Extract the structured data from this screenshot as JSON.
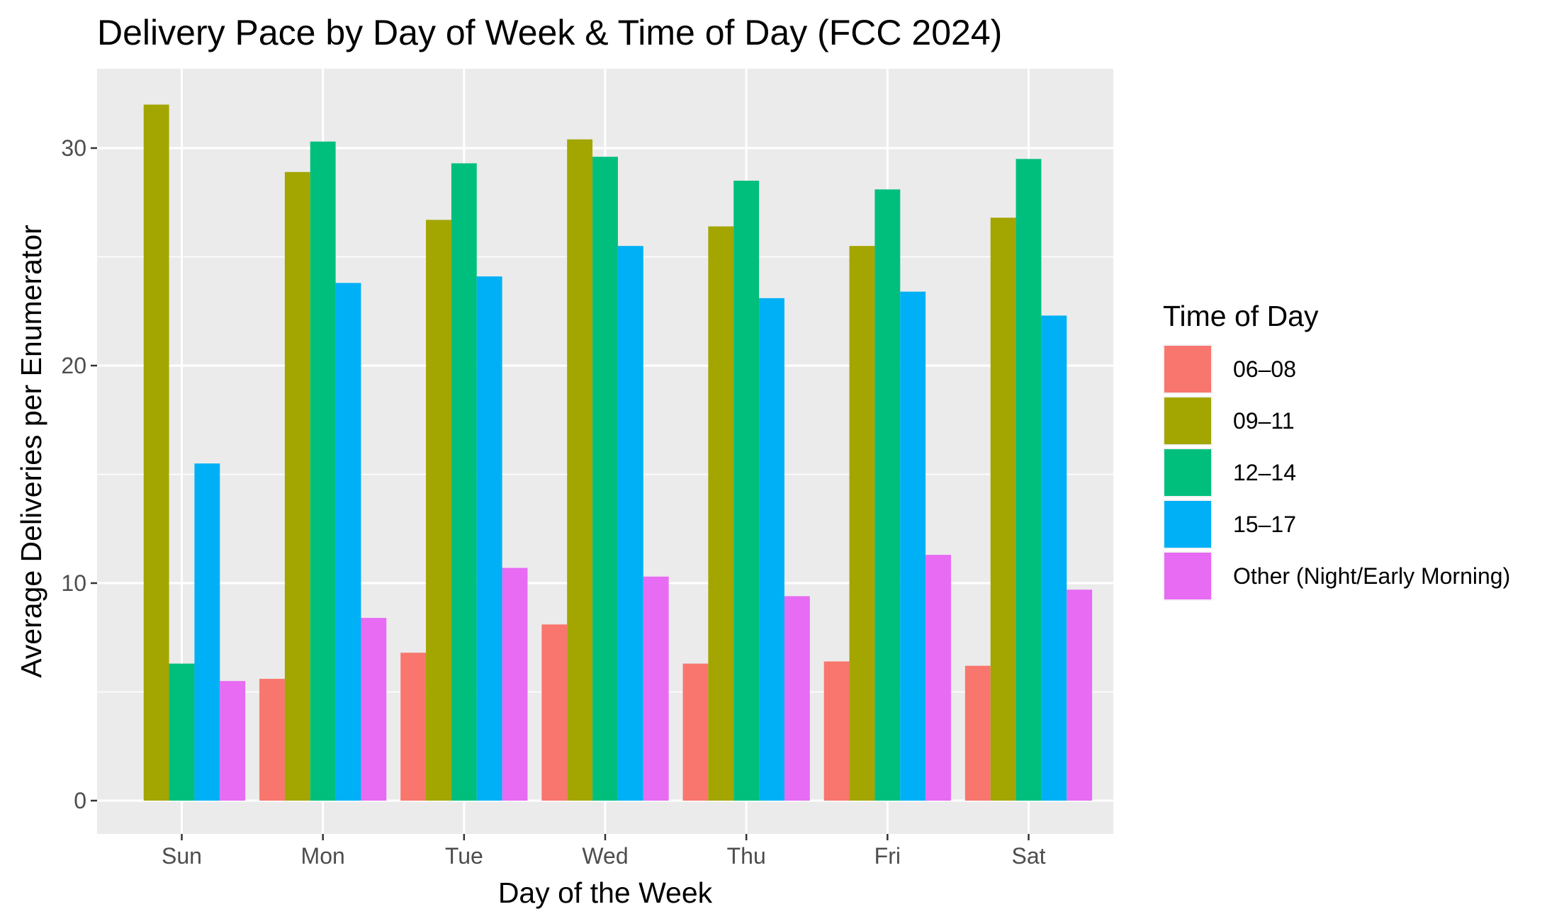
{
  "chart_data": {
    "type": "bar",
    "title": "Delivery Pace by Day of Week & Time of Day (FCC 2024)",
    "xlabel": "Day of the Week",
    "ylabel": "Average Deliveries per Enumerator",
    "ylim": [
      0,
      33.5
    ],
    "yticks": [
      0,
      10,
      20,
      30
    ],
    "grid": true,
    "legend_position": "right",
    "legend_title": "Time of Day",
    "categories": [
      "Sun",
      "Mon",
      "Tue",
      "Wed",
      "Thu",
      "Fri",
      "Sat"
    ],
    "series": [
      {
        "name": "06–08",
        "color": "#F8766D",
        "values": [
          null,
          5.6,
          6.8,
          8.1,
          6.3,
          6.4,
          6.2
        ]
      },
      {
        "name": "09–11",
        "color": "#A3A500",
        "values": [
          32.0,
          28.9,
          26.7,
          30.4,
          26.4,
          25.5,
          26.8
        ]
      },
      {
        "name": "12–14",
        "color": "#00BF7D",
        "values": [
          6.3,
          30.3,
          29.3,
          29.6,
          28.5,
          28.1,
          29.5
        ]
      },
      {
        "name": "15–17",
        "color": "#00B0F6",
        "values": [
          15.5,
          23.8,
          24.1,
          25.5,
          23.1,
          23.4,
          22.3
        ]
      },
      {
        "name": "Other (Night/Early Morning)",
        "color": "#E76BF3",
        "values": [
          5.5,
          8.4,
          10.7,
          10.3,
          9.4,
          11.3,
          9.7
        ]
      }
    ],
    "colors": {
      "panel_background": "#EBEBEB",
      "grid_line": "#FFFFFF",
      "tick_label": "#4D4D4D"
    }
  }
}
